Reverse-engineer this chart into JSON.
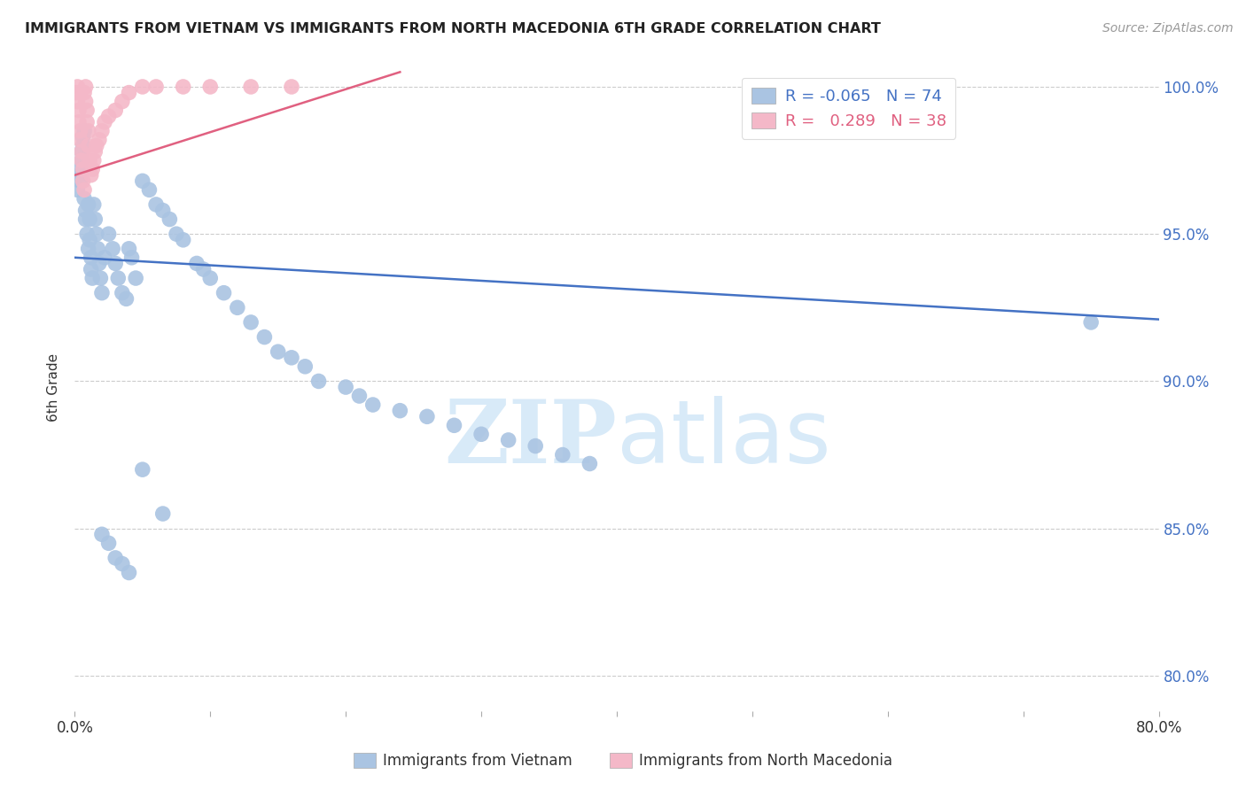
{
  "title": "IMMIGRANTS FROM VIETNAM VS IMMIGRANTS FROM NORTH MACEDONIA 6TH GRADE CORRELATION CHART",
  "source": "Source: ZipAtlas.com",
  "ylabel": "6th Grade",
  "x_label_blue": "Immigrants from Vietnam",
  "x_label_pink": "Immigrants from North Macedonia",
  "xlim": [
    0.0,
    0.8
  ],
  "ylim": [
    0.788,
    1.008
  ],
  "yticks": [
    0.8,
    0.85,
    0.9,
    0.95,
    1.0
  ],
  "ytick_labels": [
    "80.0%",
    "85.0%",
    "90.0%",
    "95.0%",
    "100.0%"
  ],
  "xticks": [
    0.0,
    0.1,
    0.2,
    0.3,
    0.4,
    0.5,
    0.6,
    0.7,
    0.8
  ],
  "xtick_labels": [
    "0.0%",
    "",
    "",
    "",
    "",
    "",
    "",
    "",
    "80.0%"
  ],
  "legend_r_blue": "-0.065",
  "legend_n_blue": "74",
  "legend_r_pink": "0.289",
  "legend_n_pink": "38",
  "blue_color": "#aac4e2",
  "blue_line_color": "#4472c4",
  "pink_color": "#f4b8c8",
  "pink_line_color": "#e06080",
  "blue_line_y0": 0.942,
  "blue_line_y1": 0.921,
  "pink_line_x0": 0.0,
  "pink_line_x1": 0.24,
  "pink_line_y0": 0.97,
  "pink_line_y1": 1.005,
  "blue_scatter_x": [
    0.002,
    0.003,
    0.004,
    0.004,
    0.005,
    0.005,
    0.006,
    0.006,
    0.007,
    0.007,
    0.008,
    0.008,
    0.009,
    0.01,
    0.01,
    0.011,
    0.011,
    0.012,
    0.012,
    0.013,
    0.014,
    0.015,
    0.016,
    0.017,
    0.018,
    0.019,
    0.02,
    0.022,
    0.025,
    0.028,
    0.03,
    0.032,
    0.035,
    0.038,
    0.04,
    0.042,
    0.045,
    0.05,
    0.055,
    0.06,
    0.065,
    0.07,
    0.075,
    0.08,
    0.09,
    0.095,
    0.1,
    0.11,
    0.12,
    0.13,
    0.14,
    0.15,
    0.16,
    0.17,
    0.18,
    0.2,
    0.21,
    0.22,
    0.24,
    0.26,
    0.28,
    0.3,
    0.32,
    0.34,
    0.36,
    0.38,
    0.05,
    0.065,
    0.02,
    0.025,
    0.03,
    0.035,
    0.04,
    0.75
  ],
  "blue_scatter_y": [
    0.965,
    0.97,
    0.972,
    0.968,
    0.975,
    0.978,
    0.98,
    0.983,
    0.985,
    0.962,
    0.958,
    0.955,
    0.95,
    0.945,
    0.96,
    0.955,
    0.948,
    0.942,
    0.938,
    0.935,
    0.96,
    0.955,
    0.95,
    0.945,
    0.94,
    0.935,
    0.93,
    0.942,
    0.95,
    0.945,
    0.94,
    0.935,
    0.93,
    0.928,
    0.945,
    0.942,
    0.935,
    0.968,
    0.965,
    0.96,
    0.958,
    0.955,
    0.95,
    0.948,
    0.94,
    0.938,
    0.935,
    0.93,
    0.925,
    0.92,
    0.915,
    0.91,
    0.908,
    0.905,
    0.9,
    0.898,
    0.895,
    0.892,
    0.89,
    0.888,
    0.885,
    0.882,
    0.88,
    0.878,
    0.875,
    0.872,
    0.87,
    0.855,
    0.848,
    0.845,
    0.84,
    0.838,
    0.835,
    0.92
  ],
  "pink_scatter_x": [
    0.001,
    0.002,
    0.002,
    0.003,
    0.003,
    0.004,
    0.004,
    0.005,
    0.005,
    0.006,
    0.006,
    0.007,
    0.007,
    0.008,
    0.008,
    0.009,
    0.009,
    0.01,
    0.01,
    0.011,
    0.012,
    0.013,
    0.014,
    0.015,
    0.016,
    0.018,
    0.02,
    0.022,
    0.025,
    0.03,
    0.035,
    0.04,
    0.05,
    0.06,
    0.08,
    0.1,
    0.13,
    0.16
  ],
  "pink_scatter_y": [
    0.998,
    1.0,
    0.995,
    0.992,
    0.988,
    0.985,
    0.982,
    0.978,
    0.975,
    0.972,
    0.968,
    0.965,
    0.998,
    1.0,
    0.995,
    0.992,
    0.988,
    0.985,
    0.98,
    0.975,
    0.97,
    0.972,
    0.975,
    0.978,
    0.98,
    0.982,
    0.985,
    0.988,
    0.99,
    0.992,
    0.995,
    0.998,
    1.0,
    1.0,
    1.0,
    1.0,
    1.0,
    1.0
  ],
  "watermark_zip": "ZIP",
  "watermark_atlas": "atlas",
  "watermark_color": "#d8eaf8",
  "background_color": "#ffffff"
}
